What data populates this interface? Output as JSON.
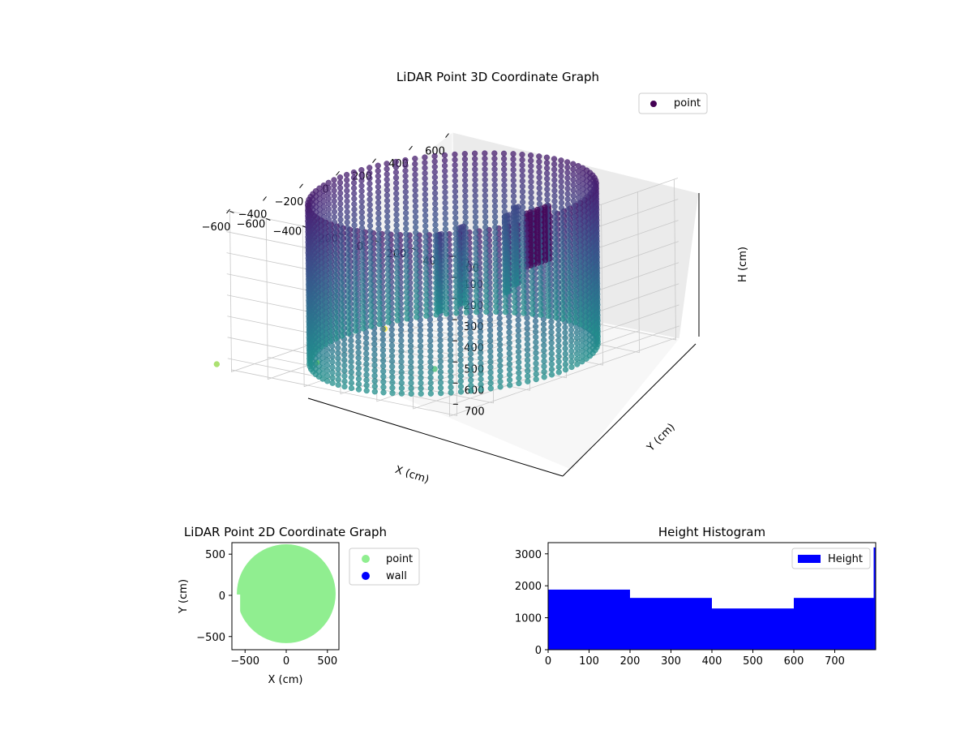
{
  "figure": {
    "background": "#ffffff"
  },
  "chart_data": [
    {
      "type": "scatter3d",
      "title": "LiDAR Point 3D Coordinate Graph",
      "xlabel": "X (cm)",
      "ylabel": "Y (cm)",
      "zlabel": "H (cm)",
      "xticks": [
        "−600",
        "−400",
        "−200",
        "0",
        "200",
        "400",
        "600"
      ],
      "yticks": [
        "−600",
        "−400",
        "−200",
        "0",
        "200",
        "400",
        "600"
      ],
      "zticks": [
        "0",
        "100",
        "200",
        "300",
        "400",
        "500",
        "600",
        "700"
      ],
      "xlim": [
        -620,
        620
      ],
      "ylim": [
        -620,
        620
      ],
      "zlim": [
        0,
        760
      ],
      "z_inverted": true,
      "grid": true,
      "legend": {
        "placement": "top-right",
        "entries": [
          {
            "name": "point",
            "color": "#440154"
          }
        ]
      },
      "colormap": "viridis",
      "structure": {
        "wall": {
          "shape": "cylinder",
          "radius": 560,
          "height_range": [
            0,
            760
          ],
          "angular_spacing_deg": 4,
          "height_spacing": 25
        },
        "interior_columns": [
          {
            "x": -220,
            "y": 150,
            "h_range": [
              100,
              460
            ]
          },
          {
            "x": -100,
            "y": 150,
            "h_range": [
              100,
              460
            ]
          },
          {
            "x": 150,
            "y": 150,
            "h_range": [
              120,
              480
            ]
          },
          {
            "x": 250,
            "y": 100,
            "h_range": [
              120,
              480
            ]
          }
        ],
        "cluster": {
          "x": 20,
          "y": 450,
          "h_range": [
            0,
            260
          ]
        },
        "outliers": [
          {
            "x": -600,
            "y": 500,
            "h": 560,
            "color": "#3fbc73"
          },
          {
            "x": -650,
            "y": -100,
            "h": 620,
            "color": "#5ec962"
          },
          {
            "x": -700,
            "y": -600,
            "h": 700,
            "color": "#90d743"
          },
          {
            "x": 120,
            "y": -500,
            "h": 760,
            "color": "#fde725"
          }
        ]
      }
    },
    {
      "type": "scatter",
      "title": "LiDAR Point 2D Coordinate Graph",
      "xlabel": "X (cm)",
      "ylabel": "Y (cm)",
      "xticks": [
        "−500",
        "0",
        "500"
      ],
      "yticks": [
        "−500",
        "0",
        "500"
      ],
      "xlim": [
        -660,
        640
      ],
      "ylim": [
        -660,
        640
      ],
      "grid": false,
      "legend": {
        "placement": "outside-right",
        "entries": [
          {
            "name": "point",
            "color": "#90ee90"
          },
          {
            "name": "wall",
            "color": "#0000ff"
          }
        ]
      },
      "filled_region": {
        "shape": "disk",
        "center": [
          0,
          20
        ],
        "radius": 600,
        "notch": {
          "x_range": [
            -660,
            -560
          ],
          "y_range": [
            -250,
            10
          ]
        }
      }
    },
    {
      "type": "histogram",
      "title": "Height Histogram",
      "xticks": [
        "0",
        "100",
        "200",
        "300",
        "400",
        "500",
        "600",
        "700"
      ],
      "yticks": [
        "0",
        "1000",
        "2000",
        "3000"
      ],
      "xlim": [
        0,
        800
      ],
      "ylim": [
        0,
        3350
      ],
      "grid": false,
      "legend": {
        "placement": "top-right",
        "entries": [
          {
            "name": "Height",
            "color": "#0000ff"
          }
        ]
      },
      "bins": [
        {
          "start": 0,
          "end": 200,
          "count": 1880
        },
        {
          "start": 200,
          "end": 400,
          "count": 1620
        },
        {
          "start": 400,
          "end": 600,
          "count": 1290
        },
        {
          "start": 600,
          "end": 795,
          "count": 1620
        },
        {
          "start": 795,
          "end": 800,
          "count": 3200
        }
      ]
    }
  ]
}
